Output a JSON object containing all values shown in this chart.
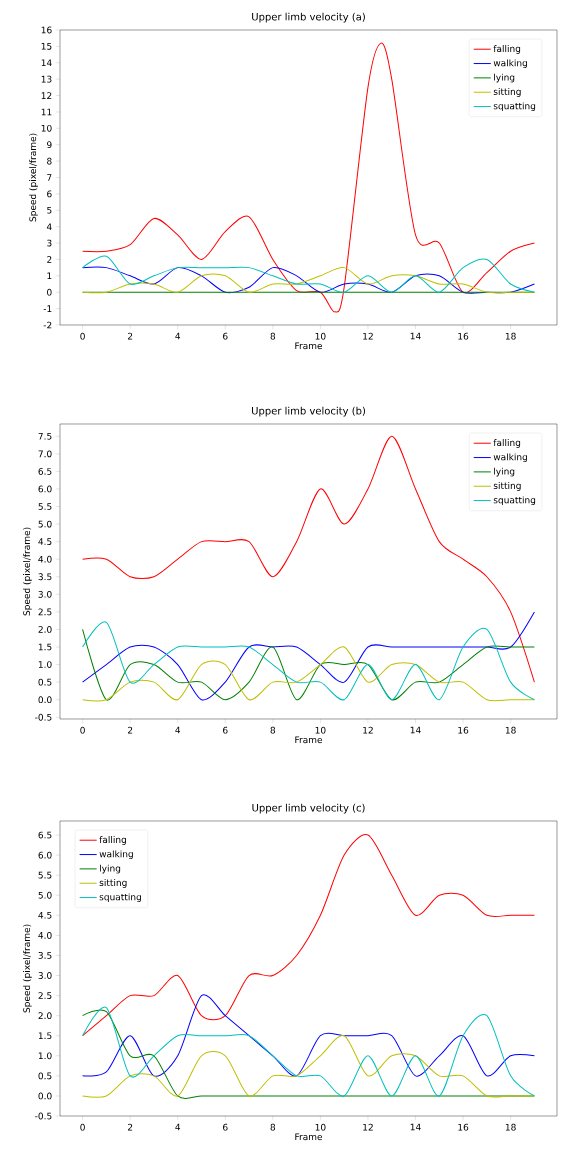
{
  "chart_data": [
    {
      "type": "line",
      "title": "Upper limb velocity (a)",
      "xlabel": "Frame",
      "ylabel": "Speed (pixel/frame)",
      "legend": "top right",
      "x": [
        0,
        1,
        2,
        3,
        4,
        5,
        6,
        7,
        8,
        9,
        10,
        11,
        12,
        13,
        14,
        15,
        16,
        17,
        18,
        19
      ],
      "xlim": [
        -0.95,
        19.95
      ],
      "xticks": [
        0,
        2,
        4,
        6,
        8,
        10,
        12,
        14,
        16,
        18
      ],
      "ylim": [
        -2,
        16
      ],
      "yticks": [
        -2,
        -1,
        0,
        1,
        2,
        3,
        4,
        5,
        6,
        7,
        8,
        9,
        10,
        11,
        12,
        13,
        14,
        15,
        16
      ],
      "series": [
        {
          "name": "falling",
          "color": "#ff0000",
          "x": [
            0,
            1,
            2,
            3,
            4,
            5,
            6,
            7,
            8,
            9,
            10,
            10.6,
            11,
            12,
            12.55,
            13,
            14,
            15,
            16,
            17,
            18,
            19
          ],
          "values": [
            2.5,
            2.5,
            2.9,
            4.5,
            3.5,
            2,
            3.7,
            4.6,
            2,
            0.1,
            0,
            -1.2,
            0.3,
            12.5,
            15.2,
            13,
            3.5,
            3,
            0,
            1.2,
            2.5,
            3
          ]
        },
        {
          "name": "walking",
          "color": "#0000ff",
          "values": [
            1.5,
            1.5,
            1,
            0.5,
            1.5,
            1,
            0,
            0.3,
            1.5,
            1,
            0,
            0.5,
            0.5,
            0,
            1,
            1,
            0,
            0,
            0,
            0.5
          ]
        },
        {
          "name": "lying",
          "color": "#008000",
          "values": [
            0,
            0,
            0,
            0,
            0,
            0,
            0,
            0,
            0,
            0,
            0,
            0,
            0,
            0,
            0,
            0,
            0,
            0,
            0,
            0
          ]
        },
        {
          "name": "sitting",
          "color": "#bfbf00",
          "values": [
            0,
            0,
            0.5,
            0.5,
            0,
            1,
            1,
            0,
            0.5,
            0.5,
            1,
            1.5,
            0.5,
            1,
            1,
            0.5,
            0.5,
            0,
            0,
            0
          ]
        },
        {
          "name": "squatting",
          "color": "#00bfbf",
          "values": [
            1.5,
            2.2,
            0.5,
            1,
            1.5,
            1.5,
            1.5,
            1.5,
            1,
            0.5,
            0.5,
            0,
            1,
            0,
            1,
            0,
            1.5,
            2,
            0.5,
            0
          ]
        }
      ]
    },
    {
      "type": "line",
      "title": "Upper limb velocity (b)",
      "xlabel": "Frame",
      "ylabel": "Speed (pixel/frame)",
      "legend": "top right",
      "x": [
        0,
        1,
        2,
        3,
        4,
        5,
        6,
        7,
        8,
        9,
        10,
        11,
        12,
        13,
        14,
        15,
        16,
        17,
        18,
        19
      ],
      "xlim": [
        -0.95,
        19.95
      ],
      "xticks": [
        0,
        2,
        4,
        6,
        8,
        10,
        12,
        14,
        16,
        18
      ],
      "ylim": [
        -0.55,
        7.85
      ],
      "yticks": [
        {
          "value": -0.5,
          "label": "-0.5"
        },
        {
          "value": 0,
          "label": "0.0"
        },
        0.5,
        {
          "value": 1,
          "label": "1.0"
        },
        1.5,
        {
          "value": 2,
          "label": "2.0"
        },
        2.5,
        {
          "value": 3,
          "label": "3.0"
        },
        3.5,
        {
          "value": 4,
          "label": "4.0"
        },
        4.5,
        {
          "value": 5,
          "label": "5.0"
        },
        5.5,
        {
          "value": 6,
          "label": "6.0"
        },
        6.5,
        {
          "value": 7,
          "label": "7.0"
        },
        7.5
      ],
      "series": [
        {
          "name": "falling",
          "color": "#ff0000",
          "values": [
            4,
            4,
            3.5,
            3.5,
            4,
            4.5,
            4.5,
            4.5,
            3.5,
            4.5,
            6,
            5,
            6,
            7.5,
            6,
            4.5,
            4,
            3.5,
            2.5,
            0.5
          ]
        },
        {
          "name": "walking",
          "color": "#0000ff",
          "values": [
            0.5,
            1,
            1.5,
            1.5,
            1,
            0,
            0.5,
            1.5,
            1.5,
            1.5,
            1,
            0.5,
            1.5,
            1.5,
            1.5,
            1.5,
            1.5,
            1.5,
            1.5,
            2.5
          ]
        },
        {
          "name": "lying",
          "color": "#008000",
          "values": [
            2,
            0,
            1,
            1,
            0.5,
            0.5,
            0,
            0.5,
            1.5,
            0,
            1,
            1,
            1,
            0,
            0.5,
            0.5,
            1,
            1.5,
            1.5,
            1.5
          ]
        },
        {
          "name": "sitting",
          "color": "#bfbf00",
          "values": [
            0,
            0,
            0.5,
            0.5,
            0,
            1,
            1,
            0,
            0.5,
            0.5,
            1,
            1.5,
            0.5,
            1,
            1,
            0.5,
            0.5,
            0,
            0,
            0
          ]
        },
        {
          "name": "squatting",
          "color": "#00bfbf",
          "values": [
            1.5,
            2.2,
            0.5,
            1,
            1.5,
            1.5,
            1.5,
            1.5,
            1,
            0.5,
            0.5,
            0,
            1,
            0,
            1,
            0,
            1.5,
            2,
            0.5,
            0
          ]
        }
      ]
    },
    {
      "type": "line",
      "title": "Upper limb velocity (c)",
      "xlabel": "Frame",
      "ylabel": "Speed (pixel/frame)",
      "legend": "top left",
      "x": [
        0,
        1,
        2,
        3,
        4,
        5,
        6,
        7,
        8,
        9,
        10,
        11,
        12,
        13,
        14,
        15,
        16,
        17,
        18,
        19
      ],
      "xlim": [
        -0.95,
        19.95
      ],
      "xticks": [
        0,
        2,
        4,
        6,
        8,
        10,
        12,
        14,
        16,
        18
      ],
      "ylim": [
        -0.5,
        6.85
      ],
      "yticks": [
        {
          "value": -0.5,
          "label": "-0.5"
        },
        {
          "value": 0,
          "label": "0.0"
        },
        0.5,
        {
          "value": 1,
          "label": "1.0"
        },
        1.5,
        {
          "value": 2,
          "label": "2.0"
        },
        2.5,
        {
          "value": 3,
          "label": "3.0"
        },
        3.5,
        {
          "value": 4,
          "label": "4.0"
        },
        4.5,
        {
          "value": 5,
          "label": "5.0"
        },
        5.5,
        {
          "value": 6,
          "label": "6.0"
        },
        6.5
      ],
      "series": [
        {
          "name": "falling",
          "color": "#ff0000",
          "values": [
            1.5,
            2,
            2.5,
            2.5,
            3,
            2,
            2,
            3,
            3,
            3.5,
            4.5,
            6,
            6.5,
            5.5,
            4.5,
            5,
            5,
            4.5,
            4.5,
            4.5
          ]
        },
        {
          "name": "walking",
          "color": "#0000ff",
          "values": [
            0.5,
            0.6,
            1.5,
            0.5,
            1,
            2.5,
            2,
            1.5,
            1,
            0.5,
            1.5,
            1.5,
            1.5,
            1.5,
            0.5,
            1,
            1.5,
            0.5,
            1,
            1
          ]
        },
        {
          "name": "lying",
          "color": "#008000",
          "values": [
            2,
            2.1,
            1,
            1,
            0,
            0,
            0,
            0,
            0,
            0,
            0,
            0,
            0,
            0,
            0,
            0,
            0,
            0,
            0,
            0
          ]
        },
        {
          "name": "sitting",
          "color": "#bfbf00",
          "values": [
            0,
            0,
            0.5,
            0.5,
            0,
            1,
            1,
            0,
            0.5,
            0.5,
            1,
            1.5,
            0.5,
            1,
            1,
            0.5,
            0.5,
            0,
            0,
            0
          ]
        },
        {
          "name": "squatting",
          "color": "#00bfbf",
          "values": [
            1.5,
            2.2,
            0.5,
            1,
            1.5,
            1.5,
            1.5,
            1.5,
            1,
            0.5,
            0.5,
            0,
            1,
            0,
            1,
            0,
            1.5,
            2,
            0.5,
            0
          ]
        }
      ]
    }
  ]
}
